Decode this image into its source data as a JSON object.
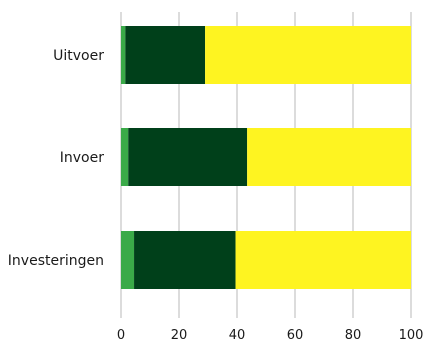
{
  "chart_data": {
    "type": "bar",
    "orientation": "horizontal",
    "stacked": true,
    "percent_stacked": true,
    "categories": [
      "Uitvoer",
      "Invoer",
      "Investeringen"
    ],
    "series": [
      {
        "color": "#3aaa48",
        "values": [
          1.5,
          2.5,
          4.5
        ]
      },
      {
        "color": "#00401a",
        "values": [
          27.5,
          41,
          35
        ]
      },
      {
        "color": "#fef421",
        "values": [
          71,
          56.5,
          60.5
        ]
      }
    ],
    "xlim": [
      0,
      100
    ],
    "xticks": [
      "0",
      "20",
      "40",
      "60",
      "80",
      "100"
    ],
    "xgrid": true,
    "ygrid": false,
    "legend": "none",
    "title": "",
    "xlabel": "",
    "ylabel": ""
  }
}
